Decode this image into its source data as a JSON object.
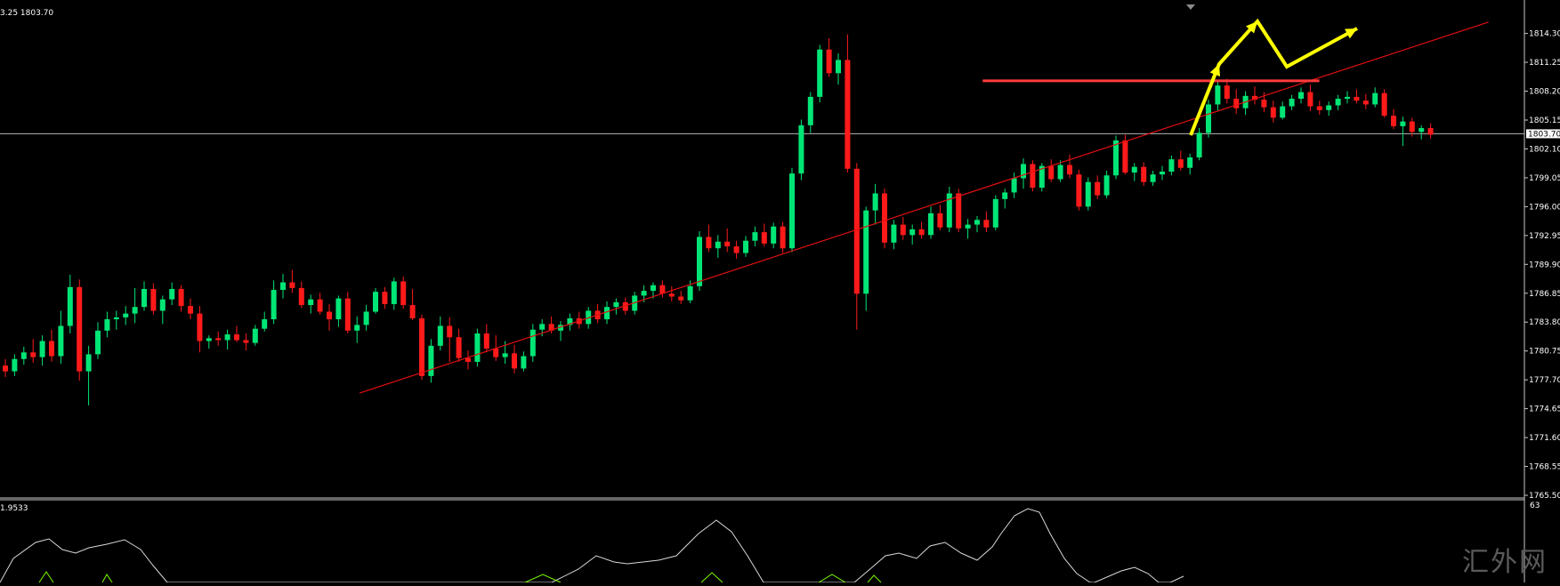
{
  "header": {
    "price_readout": "3.25 1803.70"
  },
  "indicator": {
    "label": "1.9533",
    "right_label": "63"
  },
  "watermark": "汇外网",
  "colors": {
    "background": "#000000",
    "frame": "#c8c8c8",
    "bull": "#00e676",
    "bear": "#ff1a1a",
    "trendline": "#e01010",
    "resistance": "#ff3b3b",
    "arrow": "#ffff00",
    "indicator_line": "#d8d8d8",
    "indicator_signal": "#7cfc00"
  },
  "chart_data": {
    "type": "candlestick",
    "title": "",
    "xlabel": "",
    "ylabel": "",
    "ylim": [
      1765.5,
      1816.8
    ],
    "grid": false,
    "y_ticks": [
      "1814.30",
      "1811.25",
      "1808.20",
      "1805.15",
      "1802.10",
      "1799.05",
      "1796.00",
      "1792.95",
      "1789.90",
      "1786.85",
      "1783.80",
      "1780.75",
      "1777.70",
      "1774.65",
      "1771.60",
      "1768.55",
      "1765.50"
    ],
    "current_price": "1803.70",
    "candles": [
      [
        1779.2,
        1779.9,
        1778.0,
        1778.6
      ],
      [
        1778.6,
        1780.4,
        1778.1,
        1779.9
      ],
      [
        1779.9,
        1781.2,
        1779.3,
        1780.6
      ],
      [
        1780.6,
        1782.0,
        1779.5,
        1780.1
      ],
      [
        1780.1,
        1782.4,
        1779.2,
        1781.8
      ],
      [
        1781.8,
        1783.0,
        1779.6,
        1780.2
      ],
      [
        1780.2,
        1785.0,
        1779.4,
        1783.4
      ],
      [
        1783.4,
        1788.8,
        1782.6,
        1787.5
      ],
      [
        1787.5,
        1788.3,
        1777.6,
        1778.6
      ],
      [
        1778.6,
        1781.3,
        1775.0,
        1780.4
      ],
      [
        1780.4,
        1783.8,
        1779.9,
        1782.9
      ],
      [
        1782.9,
        1784.9,
        1782.2,
        1784.1
      ],
      [
        1784.1,
        1785.0,
        1783.0,
        1784.3
      ],
      [
        1784.3,
        1785.5,
        1783.5,
        1784.7
      ],
      [
        1784.7,
        1787.4,
        1783.7,
        1785.4
      ],
      [
        1785.4,
        1788.1,
        1785.0,
        1787.3
      ],
      [
        1787.3,
        1787.9,
        1784.6,
        1785.0
      ],
      [
        1785.0,
        1786.6,
        1783.6,
        1786.2
      ],
      [
        1786.2,
        1788.0,
        1785.6,
        1787.3
      ],
      [
        1787.3,
        1787.7,
        1784.9,
        1785.5
      ],
      [
        1785.5,
        1786.3,
        1784.1,
        1784.7
      ],
      [
        1784.7,
        1785.5,
        1780.6,
        1781.8
      ],
      [
        1781.8,
        1782.4,
        1781.0,
        1782.1
      ],
      [
        1782.1,
        1782.8,
        1781.3,
        1781.9
      ],
      [
        1781.9,
        1783.0,
        1780.9,
        1782.5
      ],
      [
        1782.5,
        1783.4,
        1781.7,
        1781.9
      ],
      [
        1781.9,
        1782.6,
        1780.8,
        1781.6
      ],
      [
        1781.6,
        1783.5,
        1781.3,
        1783.1
      ],
      [
        1783.1,
        1784.9,
        1782.8,
        1784.1
      ],
      [
        1784.1,
        1788.2,
        1783.6,
        1787.2
      ],
      [
        1787.2,
        1788.9,
        1786.3,
        1788.0
      ],
      [
        1788.0,
        1789.3,
        1786.9,
        1787.4
      ],
      [
        1787.4,
        1788.1,
        1785.3,
        1785.6
      ],
      [
        1785.6,
        1786.7,
        1784.7,
        1786.2
      ],
      [
        1786.2,
        1786.9,
        1784.6,
        1784.9
      ],
      [
        1784.9,
        1785.7,
        1782.9,
        1784.1
      ],
      [
        1784.1,
        1786.6,
        1783.3,
        1786.3
      ],
      [
        1786.3,
        1787.0,
        1782.6,
        1782.9
      ],
      [
        1782.9,
        1784.4,
        1781.6,
        1783.5
      ],
      [
        1783.5,
        1785.6,
        1782.9,
        1784.9
      ],
      [
        1784.9,
        1787.4,
        1784.7,
        1787.0
      ],
      [
        1787.0,
        1787.5,
        1785.2,
        1785.7
      ],
      [
        1785.7,
        1788.5,
        1785.1,
        1788.1
      ],
      [
        1788.1,
        1788.6,
        1785.2,
        1785.6
      ],
      [
        1785.6,
        1787.3,
        1784.0,
        1784.2
      ],
      [
        1784.2,
        1784.6,
        1777.7,
        1778.1
      ],
      [
        1778.1,
        1782.0,
        1777.4,
        1781.3
      ],
      [
        1781.3,
        1784.4,
        1780.8,
        1783.4
      ],
      [
        1783.4,
        1784.3,
        1779.6,
        1782.2
      ],
      [
        1782.2,
        1783.1,
        1779.6,
        1780.0
      ],
      [
        1780.0,
        1780.8,
        1778.8,
        1779.6
      ],
      [
        1779.6,
        1783.1,
        1779.1,
        1782.6
      ],
      [
        1782.6,
        1783.6,
        1780.6,
        1781.0
      ],
      [
        1781.0,
        1782.4,
        1779.7,
        1780.1
      ],
      [
        1780.1,
        1781.8,
        1779.4,
        1780.5
      ],
      [
        1780.5,
        1781.4,
        1778.4,
        1778.9
      ],
      [
        1778.9,
        1780.7,
        1778.6,
        1780.2
      ],
      [
        1780.2,
        1783.6,
        1779.6,
        1783.0
      ],
      [
        1783.0,
        1784.1,
        1782.3,
        1783.6
      ],
      [
        1783.6,
        1784.4,
        1782.6,
        1782.9
      ],
      [
        1782.9,
        1783.9,
        1781.8,
        1783.5
      ],
      [
        1783.5,
        1784.7,
        1782.9,
        1784.2
      ],
      [
        1784.2,
        1784.9,
        1783.1,
        1783.6
      ],
      [
        1783.6,
        1785.4,
        1783.1,
        1785.0
      ],
      [
        1785.0,
        1785.7,
        1783.7,
        1784.1
      ],
      [
        1784.1,
        1786.0,
        1783.6,
        1785.4
      ],
      [
        1785.4,
        1786.3,
        1784.6,
        1785.9
      ],
      [
        1785.9,
        1786.4,
        1784.6,
        1785.0
      ],
      [
        1785.0,
        1787.0,
        1784.6,
        1786.6
      ],
      [
        1786.6,
        1787.7,
        1785.9,
        1787.1
      ],
      [
        1787.1,
        1788.0,
        1786.3,
        1787.7
      ],
      [
        1787.7,
        1788.2,
        1786.4,
        1786.8
      ],
      [
        1786.8,
        1787.6,
        1786.0,
        1786.5
      ],
      [
        1786.5,
        1787.1,
        1785.7,
        1786.1
      ],
      [
        1786.1,
        1788.2,
        1785.8,
        1787.6
      ],
      [
        1787.6,
        1793.4,
        1787.1,
        1792.8
      ],
      [
        1792.8,
        1794.1,
        1791.2,
        1791.6
      ],
      [
        1791.6,
        1793.0,
        1790.6,
        1792.3
      ],
      [
        1792.3,
        1793.7,
        1791.2,
        1791.8
      ],
      [
        1791.8,
        1792.4,
        1790.5,
        1791.1
      ],
      [
        1791.1,
        1792.9,
        1790.7,
        1792.4
      ],
      [
        1792.4,
        1793.9,
        1791.8,
        1793.3
      ],
      [
        1793.3,
        1794.2,
        1791.8,
        1792.1
      ],
      [
        1792.1,
        1794.3,
        1791.6,
        1793.9
      ],
      [
        1793.9,
        1794.4,
        1791.1,
        1791.6
      ],
      [
        1791.6,
        1800.1,
        1791.2,
        1799.5
      ],
      [
        1799.5,
        1805.2,
        1798.8,
        1804.6
      ],
      [
        1804.6,
        1808.1,
        1803.8,
        1807.6
      ],
      [
        1807.6,
        1813.1,
        1807.0,
        1812.6
      ],
      [
        1812.6,
        1813.8,
        1809.7,
        1810.1
      ],
      [
        1810.1,
        1812.2,
        1808.9,
        1811.5
      ],
      [
        1811.5,
        1814.2,
        1799.6,
        1800.0
      ],
      [
        1800.0,
        1800.6,
        1783.0,
        1786.8
      ],
      [
        1786.8,
        1796.0,
        1785.0,
        1795.6
      ],
      [
        1795.6,
        1798.4,
        1794.1,
        1797.4
      ],
      [
        1797.4,
        1797.9,
        1791.6,
        1792.2
      ],
      [
        1792.2,
        1794.6,
        1791.5,
        1794.1
      ],
      [
        1794.1,
        1794.9,
        1792.5,
        1793.0
      ],
      [
        1793.0,
        1794.1,
        1792.0,
        1793.6
      ],
      [
        1793.6,
        1794.4,
        1792.6,
        1793.0
      ],
      [
        1793.0,
        1796.0,
        1792.6,
        1795.3
      ],
      [
        1795.3,
        1796.2,
        1793.5,
        1793.8
      ],
      [
        1793.8,
        1798.1,
        1793.3,
        1797.4
      ],
      [
        1797.4,
        1797.9,
        1793.3,
        1793.7
      ],
      [
        1793.7,
        1794.7,
        1792.6,
        1794.1
      ],
      [
        1794.1,
        1795.0,
        1793.3,
        1794.6
      ],
      [
        1794.6,
        1795.5,
        1793.3,
        1793.8
      ],
      [
        1793.8,
        1797.2,
        1793.5,
        1796.8
      ],
      [
        1796.8,
        1797.9,
        1795.8,
        1797.5
      ],
      [
        1797.5,
        1799.6,
        1796.9,
        1799.0
      ],
      [
        1799.0,
        1801.1,
        1797.9,
        1800.5
      ],
      [
        1800.5,
        1800.9,
        1797.6,
        1798.0
      ],
      [
        1798.0,
        1800.6,
        1797.6,
        1800.3
      ],
      [
        1800.3,
        1801.0,
        1798.6,
        1798.9
      ],
      [
        1798.9,
        1800.9,
        1798.6,
        1800.4
      ],
      [
        1800.4,
        1801.5,
        1799.0,
        1799.4
      ],
      [
        1799.4,
        1799.9,
        1795.6,
        1796.0
      ],
      [
        1796.0,
        1799.1,
        1795.6,
        1798.6
      ],
      [
        1798.6,
        1799.3,
        1796.8,
        1797.2
      ],
      [
        1797.2,
        1799.8,
        1796.9,
        1799.3
      ],
      [
        1799.3,
        1803.5,
        1798.9,
        1803.0
      ],
      [
        1803.0,
        1803.6,
        1799.4,
        1799.6
      ],
      [
        1799.6,
        1800.6,
        1798.7,
        1800.2
      ],
      [
        1800.2,
        1800.7,
        1798.2,
        1798.6
      ],
      [
        1798.6,
        1799.8,
        1798.2,
        1799.4
      ],
      [
        1799.4,
        1800.3,
        1798.8,
        1799.7
      ],
      [
        1799.7,
        1801.4,
        1799.3,
        1801.0
      ],
      [
        1801.0,
        1801.9,
        1799.8,
        1800.1
      ],
      [
        1800.1,
        1801.6,
        1799.4,
        1801.2
      ],
      [
        1801.2,
        1804.3,
        1800.9,
        1803.8
      ],
      [
        1803.8,
        1807.3,
        1803.3,
        1806.8
      ],
      [
        1806.8,
        1809.4,
        1806.1,
        1808.8
      ],
      [
        1808.8,
        1809.5,
        1806.9,
        1807.4
      ],
      [
        1807.4,
        1808.4,
        1805.8,
        1806.4
      ],
      [
        1806.4,
        1808.2,
        1805.7,
        1807.7
      ],
      [
        1807.7,
        1808.7,
        1806.8,
        1807.3
      ],
      [
        1807.3,
        1808.1,
        1806.0,
        1806.5
      ],
      [
        1806.5,
        1807.2,
        1804.9,
        1805.4
      ],
      [
        1805.4,
        1807.1,
        1805.2,
        1806.6
      ],
      [
        1806.6,
        1807.8,
        1806.2,
        1807.4
      ],
      [
        1807.4,
        1808.6,
        1806.9,
        1808.1
      ],
      [
        1808.1,
        1808.9,
        1806.1,
        1806.6
      ],
      [
        1806.6,
        1807.2,
        1805.7,
        1806.2
      ],
      [
        1806.2,
        1807.1,
        1805.6,
        1806.7
      ],
      [
        1806.7,
        1807.8,
        1806.2,
        1807.4
      ],
      [
        1807.4,
        1808.2,
        1806.9,
        1807.6
      ],
      [
        1807.6,
        1808.4,
        1806.9,
        1807.2
      ],
      [
        1807.2,
        1807.9,
        1806.3,
        1806.8
      ],
      [
        1806.8,
        1808.6,
        1806.5,
        1808.0
      ],
      [
        1808.0,
        1808.4,
        1805.4,
        1805.6
      ],
      [
        1805.6,
        1806.3,
        1804.2,
        1804.5
      ],
      [
        1804.5,
        1805.5,
        1802.4,
        1805.0
      ],
      [
        1805.0,
        1805.4,
        1803.4,
        1803.9
      ],
      [
        1803.9,
        1804.6,
        1803.1,
        1804.3
      ],
      [
        1804.3,
        1804.8,
        1803.2,
        1803.6
      ]
    ],
    "trendline": {
      "from": [
        0.236,
        1776.3
      ],
      "to": [
        0.977,
        1815.5
      ]
    },
    "resistance": {
      "from": [
        0.645,
        1809.3
      ],
      "to": [
        0.866,
        1809.3
      ]
    }
  }
}
